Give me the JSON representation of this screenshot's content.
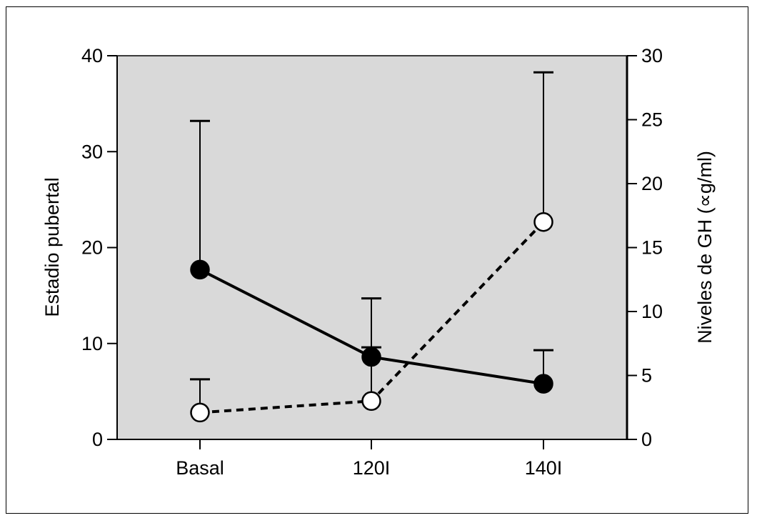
{
  "chart_data": {
    "type": "line",
    "categories": [
      "Basal",
      "120I",
      "140I"
    ],
    "left_axis": {
      "label": "Estadio pubertal",
      "ylim": [
        0,
        40
      ],
      "ticks": [
        "0",
        "10",
        "20",
        "30",
        "40"
      ]
    },
    "right_axis": {
      "label": "Niveles de GH (∝g/ml)",
      "ylim": [
        0,
        30
      ],
      "ticks": [
        "0",
        "5",
        "10",
        "15",
        "20",
        "25",
        "30"
      ]
    },
    "series": [
      {
        "axis": "left",
        "style": "solid",
        "marker": "filled-circle",
        "values": [
          17.7,
          8.6,
          5.8
        ],
        "error_upper": [
          33.2,
          14.7,
          9.3
        ]
      },
      {
        "axis": "right",
        "style": "dashed",
        "marker": "open-circle",
        "values": [
          2.1,
          3.0,
          17.0
        ],
        "error_upper": [
          4.7,
          7.2,
          28.7
        ]
      }
    ],
    "grid": false,
    "colors": {
      "plot_background": "#d9d9d9",
      "line": "#000000",
      "open_marker_fill": "#ffffff"
    }
  }
}
